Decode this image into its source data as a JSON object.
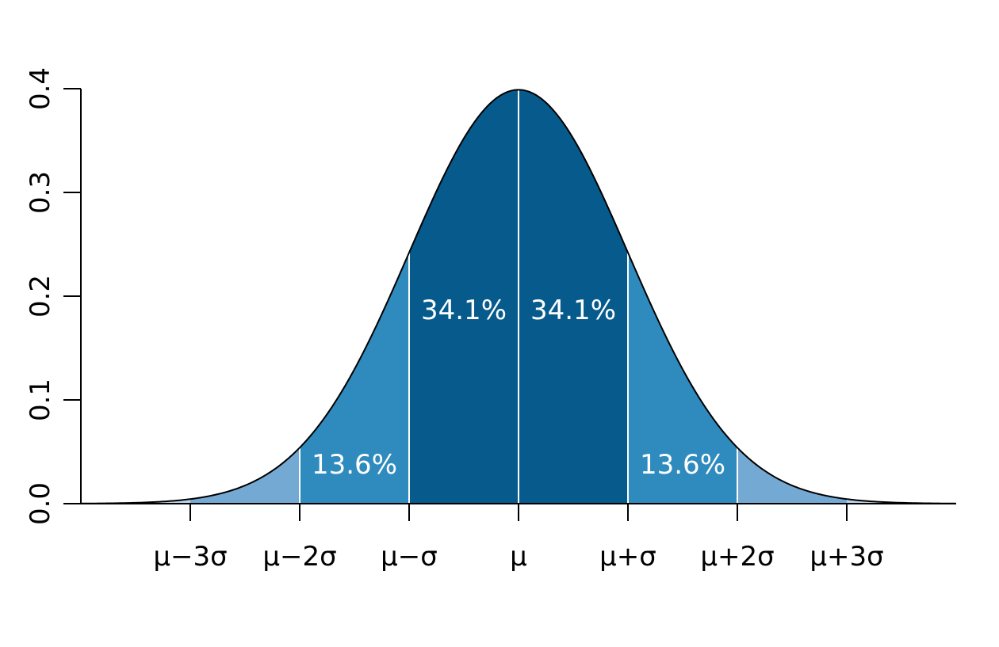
{
  "chart_data": {
    "type": "area",
    "title": "",
    "xlabel": "",
    "ylabel": "",
    "distribution": "normal",
    "mean": 0,
    "sd": 1,
    "x_range": [
      -4,
      4
    ],
    "ylim": [
      0,
      0.4
    ],
    "y_ticks": [
      0.0,
      0.1,
      0.2,
      0.3,
      0.4
    ],
    "y_tick_labels": [
      "0.0",
      "0.1",
      "0.2",
      "0.3",
      "0.4"
    ],
    "x_ticks": [
      -3,
      -2,
      -1,
      0,
      1,
      2,
      3
    ],
    "x_tick_labels": [
      "μ−3σ",
      "μ−2σ",
      "μ−σ",
      "μ",
      "μ+σ",
      "μ+2σ",
      "μ+3σ"
    ],
    "grid": false,
    "regions": [
      {
        "from": -3,
        "to": -2,
        "percent": 2.1,
        "label": "",
        "color": "#74a9d4"
      },
      {
        "from": -2,
        "to": -1,
        "percent": 13.6,
        "label": "13.6%",
        "color": "#2f8bbe"
      },
      {
        "from": -1,
        "to": 0,
        "percent": 34.1,
        "label": "34.1%",
        "color": "#065a8c"
      },
      {
        "from": 0,
        "to": 1,
        "percent": 34.1,
        "label": "34.1%",
        "color": "#065a8c"
      },
      {
        "from": 1,
        "to": 2,
        "percent": 13.6,
        "label": "13.6%",
        "color": "#2f8bbe"
      },
      {
        "from": 2,
        "to": 3,
        "percent": 2.1,
        "label": "",
        "color": "#74a9d4"
      }
    ],
    "tail_color": "#b9d4ea",
    "curve_color": "#000000",
    "divider_color": "#ffffff"
  }
}
